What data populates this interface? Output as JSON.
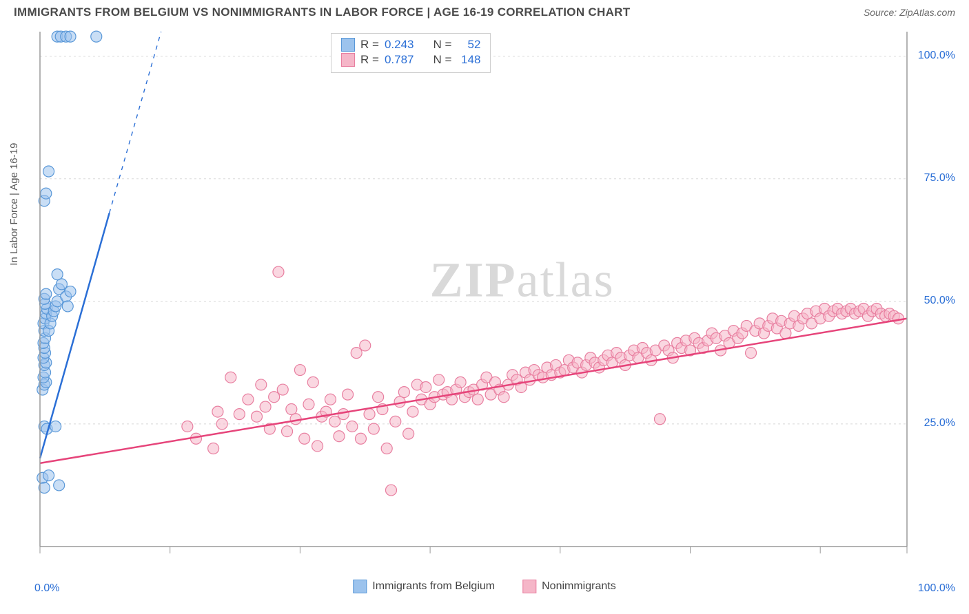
{
  "title": "IMMIGRANTS FROM BELGIUM VS NONIMMIGRANTS IN LABOR FORCE | AGE 16-19 CORRELATION CHART",
  "source": "Source: ZipAtlas.com",
  "ylabel": "In Labor Force | Age 16-19",
  "watermark_a": "ZIP",
  "watermark_b": "atlas",
  "xaxis": {
    "min_label": "0.0%",
    "max_label": "100.0%"
  },
  "chart": {
    "type": "scatter",
    "xlim": [
      0,
      100
    ],
    "ylim": [
      0,
      105
    ],
    "y_ticks": [
      25,
      50,
      75,
      100
    ],
    "y_tick_labels": [
      "25.0%",
      "50.0%",
      "75.0%",
      "100.0%"
    ],
    "x_ticks": [
      0,
      15,
      30,
      45,
      60,
      75,
      90,
      100
    ],
    "grid_color": "#d8d8d8",
    "axis_color": "#9a9a9a",
    "background": "#ffffff",
    "marker_radius": 8,
    "marker_opacity": 0.55,
    "line_width": 2.5,
    "series": [
      {
        "name": "Immigrants from Belgium",
        "color_fill": "#9cc3ed",
        "color_stroke": "#5a98d8",
        "trend_color": "#2b6fd6",
        "r": "0.243",
        "n": "52",
        "trend": {
          "x1": 0,
          "y1": 18,
          "x2": 8,
          "y2": 68,
          "dash_to_x": 18,
          "dash_to_y": 130
        },
        "points": [
          [
            0.3,
            14
          ],
          [
            0.5,
            12
          ],
          [
            2.2,
            12.5
          ],
          [
            1.0,
            14.5
          ],
          [
            0.5,
            24.5
          ],
          [
            0.8,
            24
          ],
          [
            1.8,
            24.5
          ],
          [
            0.3,
            32
          ],
          [
            0.5,
            33
          ],
          [
            0.7,
            33.5
          ],
          [
            0.4,
            34.5
          ],
          [
            0.6,
            35.5
          ],
          [
            0.5,
            37
          ],
          [
            0.7,
            37.5
          ],
          [
            0.4,
            38.5
          ],
          [
            0.6,
            39.5
          ],
          [
            0.5,
            40.5
          ],
          [
            0.4,
            41.5
          ],
          [
            0.6,
            42.5
          ],
          [
            0.5,
            44
          ],
          [
            0.4,
            45.5
          ],
          [
            0.6,
            46.5
          ],
          [
            0.7,
            47.5
          ],
          [
            0.8,
            48.5
          ],
          [
            0.6,
            49.5
          ],
          [
            0.5,
            50.5
          ],
          [
            0.7,
            51.5
          ],
          [
            1.0,
            44
          ],
          [
            1.2,
            45.5
          ],
          [
            1.4,
            47
          ],
          [
            1.6,
            48
          ],
          [
            1.8,
            49
          ],
          [
            2.0,
            50
          ],
          [
            2.2,
            52.5
          ],
          [
            2.5,
            53.5
          ],
          [
            2.0,
            55.5
          ],
          [
            3.0,
            51
          ],
          [
            3.2,
            49
          ],
          [
            3.5,
            52
          ],
          [
            0.5,
            70.5
          ],
          [
            0.7,
            72
          ],
          [
            1.0,
            76.5
          ],
          [
            2.0,
            104
          ],
          [
            2.4,
            104
          ],
          [
            3.0,
            104
          ],
          [
            3.5,
            104
          ],
          [
            6.5,
            104
          ]
        ]
      },
      {
        "name": "Nonimmigrants",
        "color_fill": "#f5b6c8",
        "color_stroke": "#e87fa0",
        "trend_color": "#e6447a",
        "r": "0.787",
        "n": "148",
        "trend": {
          "x1": 0,
          "y1": 17,
          "x2": 100,
          "y2": 46.5
        },
        "points": [
          [
            17,
            24.5
          ],
          [
            18,
            22
          ],
          [
            20,
            20
          ],
          [
            20.5,
            27.5
          ],
          [
            21,
            25
          ],
          [
            22,
            34.5
          ],
          [
            23,
            27
          ],
          [
            24,
            30
          ],
          [
            25,
            26.5
          ],
          [
            25.5,
            33
          ],
          [
            26,
            28.5
          ],
          [
            26.5,
            24
          ],
          [
            27,
            30.5
          ],
          [
            27.5,
            56
          ],
          [
            28,
            32
          ],
          [
            28.5,
            23.5
          ],
          [
            29,
            28
          ],
          [
            29.5,
            26
          ],
          [
            30,
            36
          ],
          [
            30.5,
            22
          ],
          [
            31,
            29
          ],
          [
            31.5,
            33.5
          ],
          [
            32,
            20.5
          ],
          [
            32.5,
            26.5
          ],
          [
            33,
            27.5
          ],
          [
            33.5,
            30
          ],
          [
            34,
            25.5
          ],
          [
            34.5,
            22.5
          ],
          [
            35,
            27
          ],
          [
            35.5,
            31
          ],
          [
            36,
            24.5
          ],
          [
            36.5,
            39.5
          ],
          [
            37,
            22
          ],
          [
            37.5,
            41
          ],
          [
            38,
            27
          ],
          [
            38.5,
            24
          ],
          [
            39,
            30.5
          ],
          [
            39.5,
            28
          ],
          [
            40,
            20
          ],
          [
            40.5,
            11.5
          ],
          [
            41,
            25.5
          ],
          [
            41.5,
            29.5
          ],
          [
            42,
            31.5
          ],
          [
            42.5,
            23
          ],
          [
            43,
            27.5
          ],
          [
            43.5,
            33
          ],
          [
            44,
            30
          ],
          [
            44.5,
            32.5
          ],
          [
            45,
            29
          ],
          [
            45.5,
            30.5
          ],
          [
            46,
            34
          ],
          [
            46.5,
            31
          ],
          [
            47,
            31.5
          ],
          [
            47.5,
            30
          ],
          [
            48,
            32
          ],
          [
            48.5,
            33.5
          ],
          [
            49,
            30.5
          ],
          [
            49.5,
            31.5
          ],
          [
            50,
            32
          ],
          [
            50.5,
            30
          ],
          [
            51,
            33
          ],
          [
            51.5,
            34.5
          ],
          [
            52,
            31
          ],
          [
            52.5,
            33.5
          ],
          [
            53,
            32
          ],
          [
            53.5,
            30.5
          ],
          [
            54,
            33
          ],
          [
            54.5,
            35
          ],
          [
            55,
            34
          ],
          [
            55.5,
            32.5
          ],
          [
            56,
            35.5
          ],
          [
            56.5,
            34
          ],
          [
            57,
            36
          ],
          [
            57.5,
            35
          ],
          [
            58,
            34.5
          ],
          [
            58.5,
            36.5
          ],
          [
            59,
            35
          ],
          [
            59.5,
            37
          ],
          [
            60,
            35.5
          ],
          [
            60.5,
            36
          ],
          [
            61,
            38
          ],
          [
            61.5,
            36.5
          ],
          [
            62,
            37.5
          ],
          [
            62.5,
            35.5
          ],
          [
            63,
            37
          ],
          [
            63.5,
            38.5
          ],
          [
            64,
            37.5
          ],
          [
            64.5,
            36.5
          ],
          [
            65,
            38
          ],
          [
            65.5,
            39
          ],
          [
            66,
            37.5
          ],
          [
            66.5,
            39.5
          ],
          [
            67,
            38.5
          ],
          [
            67.5,
            37
          ],
          [
            68,
            39
          ],
          [
            68.5,
            40
          ],
          [
            69,
            38.5
          ],
          [
            69.5,
            40.5
          ],
          [
            70,
            39.5
          ],
          [
            70.5,
            38
          ],
          [
            71,
            40
          ],
          [
            71.5,
            26
          ],
          [
            72,
            41
          ],
          [
            72.5,
            40
          ],
          [
            73,
            38.5
          ],
          [
            73.5,
            41.5
          ],
          [
            74,
            40.5
          ],
          [
            74.5,
            42
          ],
          [
            75,
            40
          ],
          [
            75.5,
            42.5
          ],
          [
            76,
            41.5
          ],
          [
            76.5,
            40.5
          ],
          [
            77,
            42
          ],
          [
            77.5,
            43.5
          ],
          [
            78,
            42.5
          ],
          [
            78.5,
            40
          ],
          [
            79,
            43
          ],
          [
            79.5,
            41.5
          ],
          [
            80,
            44
          ],
          [
            80.5,
            42.5
          ],
          [
            81,
            43.5
          ],
          [
            81.5,
            45
          ],
          [
            82,
            39.5
          ],
          [
            82.5,
            44
          ],
          [
            83,
            45.5
          ],
          [
            83.5,
            43.5
          ],
          [
            84,
            45
          ],
          [
            84.5,
            46.5
          ],
          [
            85,
            44.5
          ],
          [
            85.5,
            46
          ],
          [
            86,
            43.5
          ],
          [
            86.5,
            45.5
          ],
          [
            87,
            47
          ],
          [
            87.5,
            45
          ],
          [
            88,
            46.5
          ],
          [
            88.5,
            47.5
          ],
          [
            89,
            45.5
          ],
          [
            89.5,
            48
          ],
          [
            90,
            46.5
          ],
          [
            90.5,
            48.5
          ],
          [
            91,
            47
          ],
          [
            91.5,
            48
          ],
          [
            92,
            48.5
          ],
          [
            92.5,
            47.5
          ],
          [
            93,
            48
          ],
          [
            93.5,
            48.5
          ],
          [
            94,
            47.5
          ],
          [
            94.5,
            48
          ],
          [
            95,
            48.5
          ],
          [
            95.5,
            47
          ],
          [
            96,
            48
          ],
          [
            96.5,
            48.5
          ],
          [
            97,
            47.5
          ],
          [
            97.5,
            47
          ],
          [
            98,
            47.5
          ],
          [
            98.5,
            47
          ],
          [
            99,
            46.5
          ]
        ]
      }
    ]
  },
  "legend_box": {
    "rows": [
      {
        "r_label": "R =",
        "n_label": "N ="
      },
      {
        "r_label": "R =",
        "n_label": "N ="
      }
    ]
  }
}
